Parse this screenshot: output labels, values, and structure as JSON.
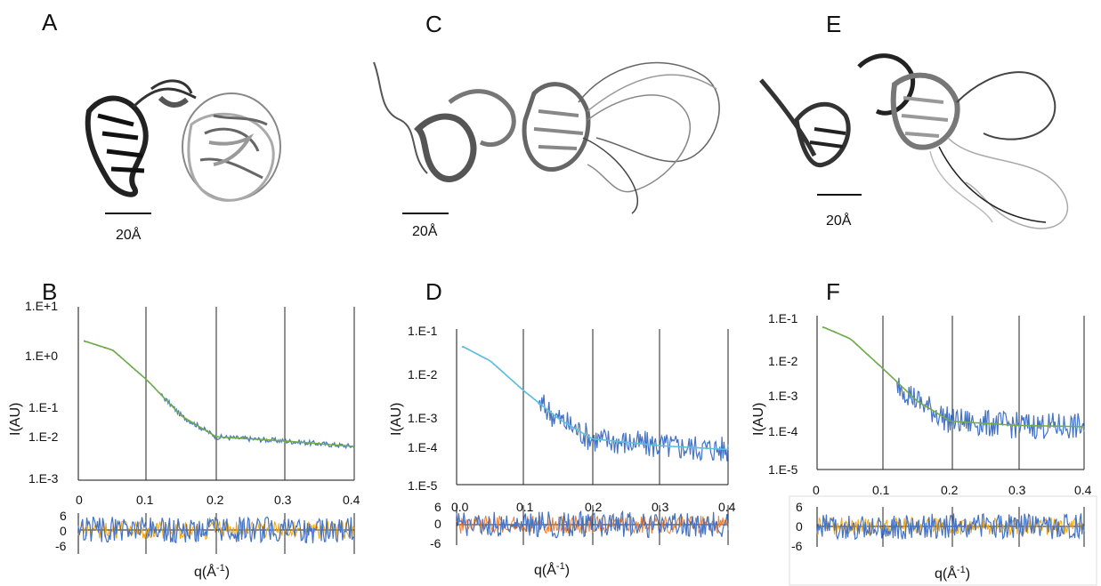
{
  "colors": {
    "data": "#4472c4",
    "fit": "#70ad47",
    "fit_alt": "#5bc0de",
    "residual_alt": "#f0a30a",
    "residual_d": "#ed7d31"
  },
  "figure": {
    "structures": [
      {
        "panel": "A",
        "scale_label": "20Å"
      },
      {
        "panel": "C",
        "scale_label": "20Å"
      },
      {
        "panel": "E",
        "scale_label": "20Å"
      }
    ],
    "plots": [
      {
        "panel": "B",
        "ylabel": "I(AU)",
        "xlabel": "q(Å-1)",
        "yticks": [
          "1.E+1",
          "1.E+0",
          "1.E-1",
          "1.E-2",
          "1.E-3"
        ],
        "xticks": [
          "0",
          "0.1",
          "0.2",
          "0.3",
          "0.4"
        ],
        "res_ticks": [
          "6",
          "0",
          "-6"
        ]
      },
      {
        "panel": "D",
        "ylabel": "I(AU)",
        "xlabel": "q(Å-1)",
        "yticks": [
          "1.E-1",
          "1.E-2",
          "1.E-3",
          "1.E-4",
          "1.E-5"
        ],
        "xticks": [
          "0.0",
          "0.1",
          "0.2",
          "0.3",
          "0.4"
        ],
        "res_ticks": [
          "6",
          "0",
          "-6"
        ]
      },
      {
        "panel": "F",
        "ylabel": "I(AU)",
        "xlabel": "q(Å-1)",
        "yticks": [
          "1.E-1",
          "1.E-2",
          "1.E-3",
          "1.E-4",
          "1.E-5"
        ],
        "xticks": [
          "0",
          "0.1",
          "0.2",
          "0.3",
          "0.4"
        ],
        "res_ticks": [
          "6",
          "0",
          "-6"
        ]
      }
    ]
  },
  "chart_data": [
    {
      "type": "line",
      "panel": "B",
      "ylog": true,
      "xlim": [
        0,
        0.4
      ],
      "ylim_log10": [
        -3,
        1
      ],
      "series": [
        {
          "q": [
            0.01,
            0.05,
            0.1,
            0.15,
            0.2,
            0.3,
            0.4
          ],
          "I": [
            1.6,
            1.0,
            0.2,
            0.03,
            0.01,
            0.008,
            0.006
          ]
        }
      ]
    },
    {
      "type": "line",
      "panel": "D",
      "ylog": true,
      "xlim": [
        0,
        0.4
      ],
      "ylim_log10": [
        -5,
        -1
      ],
      "series": [
        {
          "q": [
            0.01,
            0.05,
            0.1,
            0.15,
            0.2,
            0.3,
            0.4
          ],
          "I": [
            0.035,
            0.015,
            0.0025,
            0.0005,
            0.00015,
            0.0001,
            8e-05
          ]
        }
      ]
    },
    {
      "type": "line",
      "panel": "F",
      "ylog": true,
      "xlim": [
        0,
        0.4
      ],
      "ylim_log10": [
        -5,
        -1
      ],
      "series": [
        {
          "q": [
            0.01,
            0.05,
            0.1,
            0.15,
            0.2,
            0.3,
            0.4
          ],
          "I": [
            0.05,
            0.025,
            0.004,
            0.0006,
            0.00018,
            0.00014,
            0.00013
          ]
        }
      ]
    }
  ]
}
